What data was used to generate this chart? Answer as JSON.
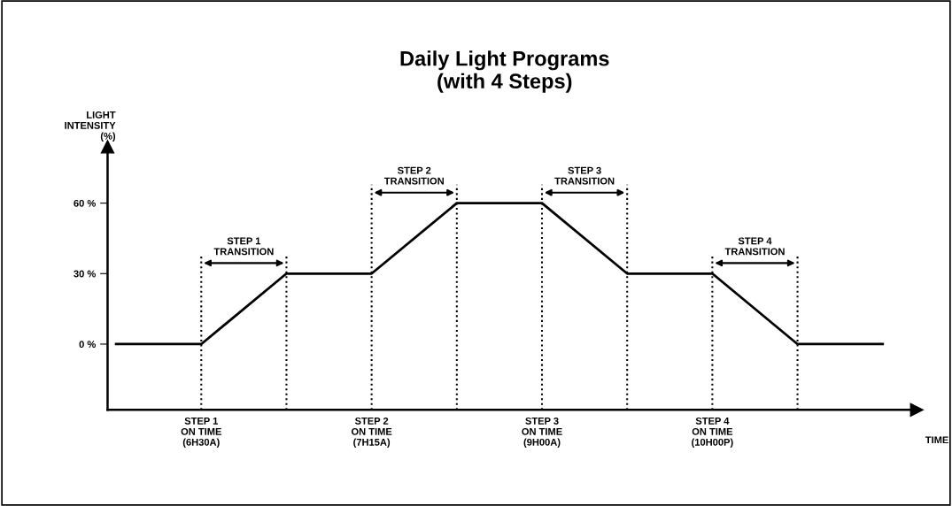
{
  "chart_data": {
    "type": "line",
    "title": "Daily Light Programs\n(with 4 Steps)",
    "xlabel": "TIME",
    "ylabel": "LIGHT\nINTENSITY\n(%)",
    "categories": [
      null,
      "STEP 1\nON TIME\n(6H30A)",
      null,
      "STEP 2\nON TIME\n(7H15A)",
      null,
      "STEP 3\nON TIME\n(9H00A)",
      null,
      "STEP 4\nON TIME\n(10H00P)",
      null,
      null
    ],
    "series": [
      {
        "color": "#000000",
        "values": [
          0,
          0,
          30,
          30,
          60,
          60,
          30,
          30,
          0,
          0
        ]
      }
    ],
    "ylim": [
      -28,
      84
    ],
    "yticks": [
      {
        "value": 0,
        "label": "0 %"
      },
      {
        "value": 30,
        "label": "30 %"
      },
      {
        "value": 60,
        "label": "60 %"
      }
    ],
    "annotations": [
      "STEP 1\nTRANSITION",
      "STEP 2\nTRANSITION",
      "STEP 3\nTRANSITION",
      "STEP 4\nTRANSITION"
    ],
    "grid": "x",
    "legend": false,
    "line_style": "solid",
    "marker": "none"
  }
}
